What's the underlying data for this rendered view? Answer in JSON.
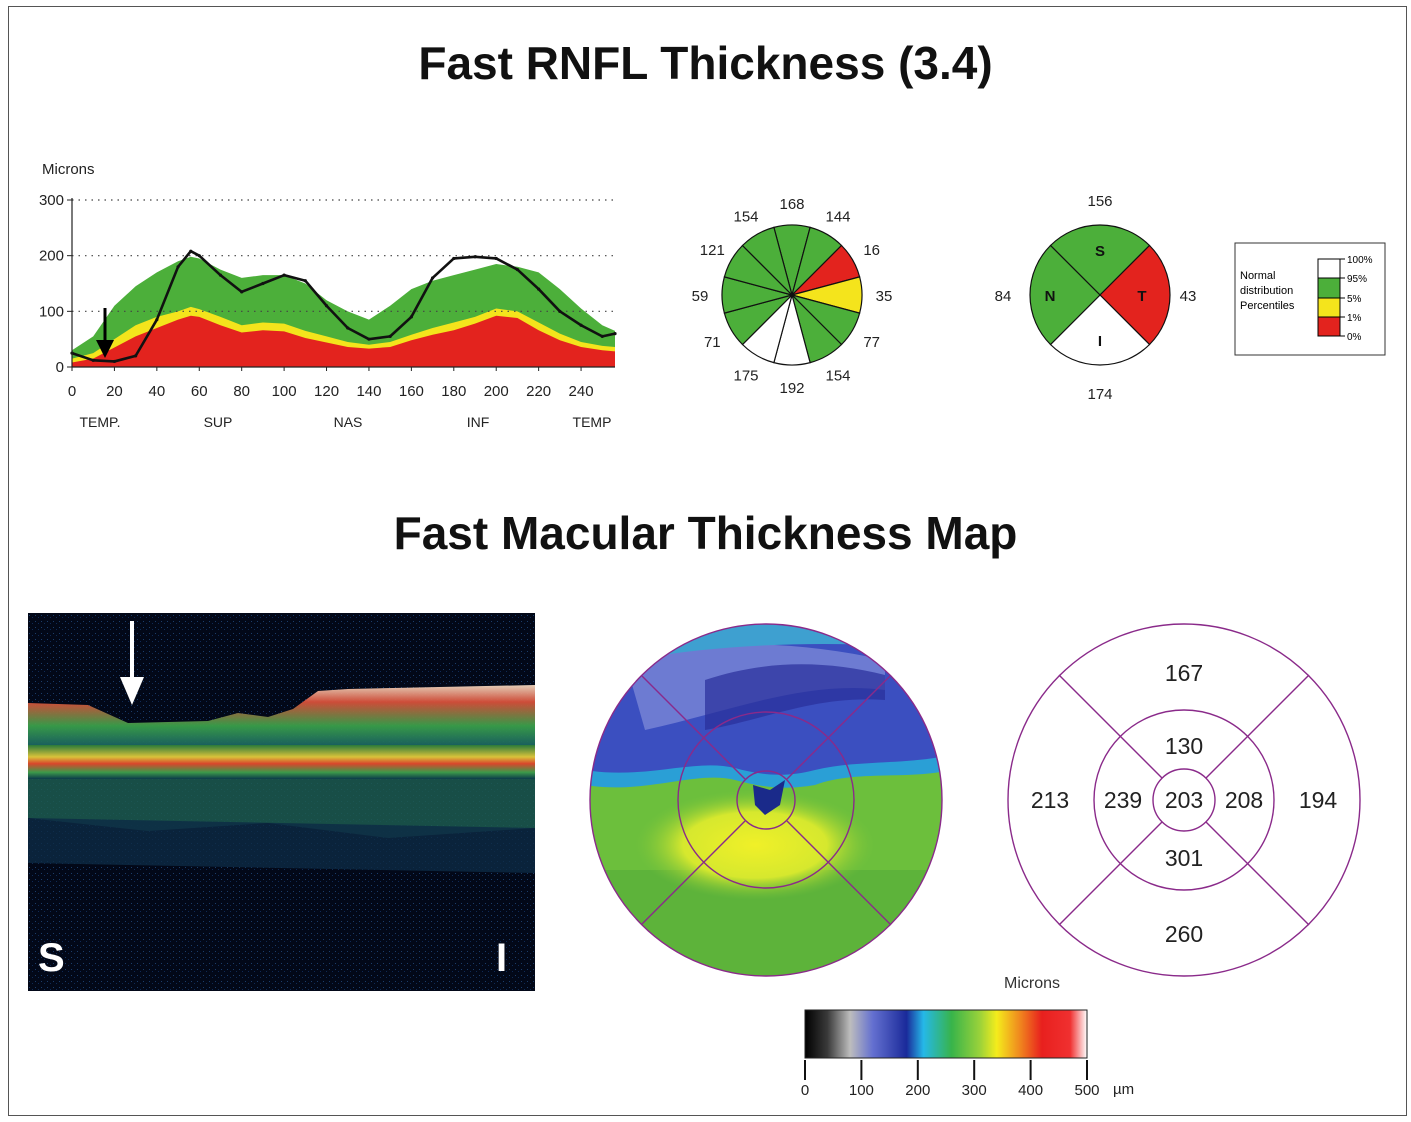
{
  "titles": {
    "rnfl": "Fast RNFL Thickness (3.4)",
    "macular": "Fast Macular Thickness Map"
  },
  "rnfl_plot": {
    "ylabel": "Microns",
    "yticks": [
      "300",
      "200",
      "100",
      "0"
    ],
    "xticks": [
      "0",
      "20",
      "40",
      "60",
      "80",
      "100",
      "120",
      "140",
      "160",
      "180",
      "200",
      "220",
      "240"
    ],
    "regions": [
      "TEMP.",
      "SUP",
      "NAS",
      "INF",
      "TEMP"
    ]
  },
  "clock_hours": {
    "values": [
      "168",
      "144",
      "16",
      "35",
      "77",
      "154",
      "192",
      "175",
      "71",
      "59",
      "121",
      "154"
    ]
  },
  "quadrants": {
    "labels": {
      "s": "S",
      "n": "N",
      "t": "T",
      "i": "I"
    },
    "values": {
      "s": "156",
      "n": "84",
      "t": "43",
      "i": "174"
    }
  },
  "legend": {
    "title_lines": [
      "Normal",
      "distribution",
      "Percentiles"
    ],
    "ticks": [
      "100%",
      "95%",
      "5%",
      "1%",
      "0%"
    ],
    "colors": {
      "white": "#ffffff",
      "green": "#4caf3a",
      "yellow": "#f4e41c",
      "red": "#e3231e"
    }
  },
  "oct_scan": {
    "left_label": "S",
    "right_label": "I"
  },
  "etdrs_grid": {
    "superior_outer": "167",
    "superior_inner": "130",
    "nasal_outer": "213",
    "nasal_inner": "239",
    "center": "203",
    "temporal_inner": "208",
    "temporal_outer": "194",
    "inferior_inner": "301",
    "inferior_outer": "260"
  },
  "colorbar": {
    "label": "Microns",
    "ticks": [
      "0",
      "100",
      "200",
      "300",
      "400",
      "500"
    ],
    "unit": "µm"
  },
  "chart_data": {
    "type": "line",
    "title": "",
    "ylabel": "Microns",
    "xlim": [
      0,
      256
    ],
    "ylim": [
      0,
      300
    ],
    "grid": true,
    "x": [
      0,
      10,
      20,
      30,
      40,
      50,
      56,
      60,
      70,
      80,
      90,
      100,
      110,
      120,
      130,
      140,
      150,
      160,
      170,
      180,
      190,
      200,
      210,
      220,
      230,
      240,
      250,
      256
    ],
    "series": [
      {
        "name": "",
        "values": [
          25,
          12,
          10,
          20,
          85,
          180,
          208,
          200,
          165,
          135,
          150,
          165,
          155,
          110,
          70,
          50,
          55,
          90,
          160,
          195,
          198,
          195,
          175,
          140,
          100,
          75,
          55,
          60
        ]
      }
    ],
    "bands": {
      "p95": [
        30,
        55,
        110,
        145,
        170,
        190,
        198,
        195,
        175,
        160,
        165,
        165,
        150,
        120,
        100,
        85,
        110,
        140,
        155,
        165,
        175,
        185,
        180,
        170,
        140,
        105,
        75,
        65
      ],
      "p5": [
        15,
        25,
        50,
        75,
        90,
        100,
        108,
        104,
        90,
        75,
        80,
        78,
        65,
        55,
        45,
        40,
        45,
        58,
        70,
        80,
        90,
        105,
        100,
        80,
        60,
        45,
        38,
        36
      ],
      "p1": [
        8,
        15,
        35,
        55,
        70,
        85,
        92,
        90,
        75,
        62,
        66,
        64,
        52,
        44,
        36,
        33,
        36,
        48,
        58,
        66,
        78,
        92,
        88,
        66,
        48,
        36,
        30,
        28
      ]
    }
  }
}
